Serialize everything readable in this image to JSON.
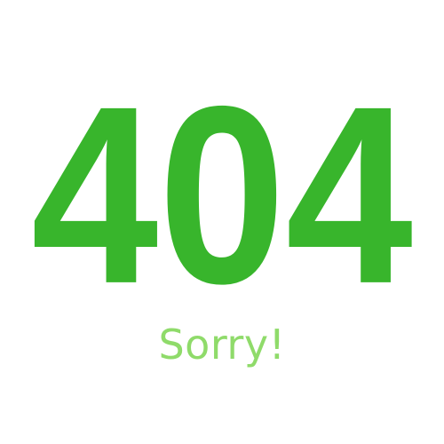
{
  "error": {
    "code": "404",
    "message": "Sorry!"
  },
  "colors": {
    "code": "#38b52c",
    "message": "#8fdb6a",
    "background": "#ffffff"
  }
}
